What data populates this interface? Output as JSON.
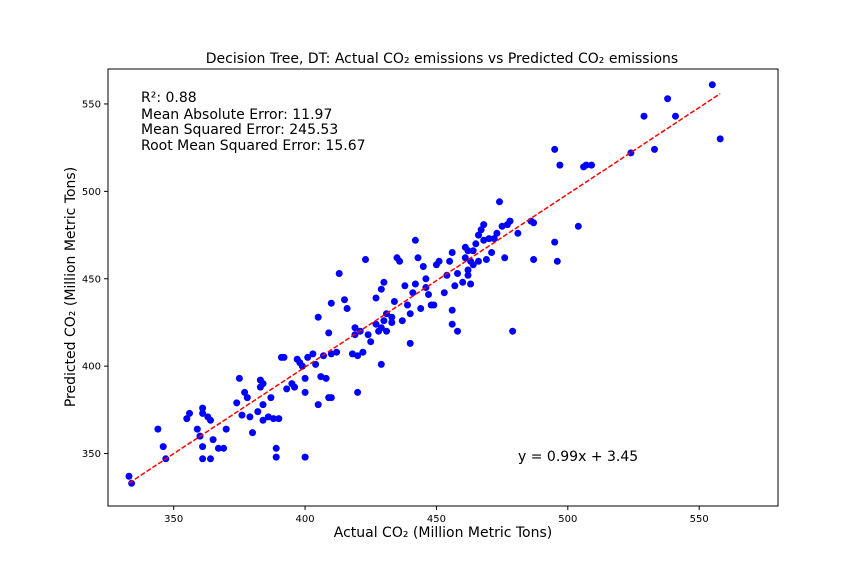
{
  "chart_data": {
    "type": "scatter",
    "title": "Decision Tree, DT: Actual CO₂ emissions vs Predicted CO₂ emissions",
    "xlabel": "Actual CO₂ (Million Metric Tons)",
    "ylabel": "Predicted CO₂ (Million Metric Tons)",
    "xlim": [
      325,
      580
    ],
    "ylim": [
      320,
      570
    ],
    "xticks": [
      350,
      400,
      450,
      500,
      550
    ],
    "yticks": [
      350,
      400,
      450,
      500,
      550
    ],
    "grid": false,
    "point_color": "#0000ff",
    "fit_line_color": "#ff0000",
    "metrics": [
      "R²: 0.88",
      "Mean Absolute Error: 11.97",
      "Mean Squared Error: 245.53",
      "Root Mean Squared Error: 15.67"
    ],
    "equation": "y = 0.99x + 3.45",
    "fit": {
      "slope": 0.99,
      "intercept": 3.45,
      "x_range": [
        333,
        558
      ]
    },
    "points": [
      [
        333,
        337
      ],
      [
        334,
        333
      ],
      [
        344,
        364
      ],
      [
        346,
        354
      ],
      [
        347,
        347
      ],
      [
        355,
        370
      ],
      [
        356,
        373
      ],
      [
        359,
        364
      ],
      [
        360,
        360
      ],
      [
        361,
        376
      ],
      [
        361,
        373
      ],
      [
        361,
        354
      ],
      [
        361,
        347
      ],
      [
        363,
        371
      ],
      [
        364,
        369
      ],
      [
        364,
        347
      ],
      [
        365,
        358
      ],
      [
        367,
        353
      ],
      [
        369,
        353
      ],
      [
        370,
        364
      ],
      [
        374,
        379
      ],
      [
        375,
        393
      ],
      [
        376,
        372
      ],
      [
        377,
        385
      ],
      [
        378,
        382
      ],
      [
        379,
        371
      ],
      [
        380,
        362
      ],
      [
        382,
        374
      ],
      [
        383,
        392
      ],
      [
        383,
        388
      ],
      [
        384,
        390
      ],
      [
        384,
        378
      ],
      [
        384,
        369
      ],
      [
        386,
        371
      ],
      [
        387,
        382
      ],
      [
        388,
        370
      ],
      [
        389,
        348
      ],
      [
        389,
        353
      ],
      [
        390,
        370
      ],
      [
        391,
        405
      ],
      [
        392,
        405
      ],
      [
        393,
        387
      ],
      [
        395,
        390
      ],
      [
        396,
        388
      ],
      [
        397,
        404
      ],
      [
        398,
        402
      ],
      [
        399,
        400
      ],
      [
        400,
        385
      ],
      [
        400,
        348
      ],
      [
        400,
        393
      ],
      [
        401,
        405
      ],
      [
        403,
        407
      ],
      [
        404,
        401
      ],
      [
        405,
        428
      ],
      [
        405,
        378
      ],
      [
        406,
        394
      ],
      [
        407,
        406
      ],
      [
        408,
        393
      ],
      [
        409,
        382
      ],
      [
        410,
        382
      ],
      [
        409,
        419
      ],
      [
        410,
        407
      ],
      [
        410,
        436
      ],
      [
        412,
        408
      ],
      [
        413,
        453
      ],
      [
        415,
        438
      ],
      [
        416,
        433
      ],
      [
        418,
        407
      ],
      [
        419,
        418
      ],
      [
        419,
        422
      ],
      [
        420,
        406
      ],
      [
        420,
        385
      ],
      [
        421,
        420
      ],
      [
        422,
        408
      ],
      [
        423,
        461
      ],
      [
        424,
        418
      ],
      [
        425,
        414
      ],
      [
        427,
        439
      ],
      [
        427,
        424
      ],
      [
        428,
        420
      ],
      [
        429,
        422
      ],
      [
        429,
        401
      ],
      [
        429,
        444
      ],
      [
        430,
        448
      ],
      [
        430,
        426
      ],
      [
        431,
        430
      ],
      [
        431,
        420
      ],
      [
        433,
        428
      ],
      [
        433,
        425
      ],
      [
        434,
        437
      ],
      [
        435,
        462
      ],
      [
        436,
        460
      ],
      [
        437,
        426
      ],
      [
        438,
        446
      ],
      [
        439,
        435
      ],
      [
        440,
        413
      ],
      [
        440,
        430
      ],
      [
        441,
        442
      ],
      [
        442,
        472
      ],
      [
        442,
        447
      ],
      [
        443,
        462
      ],
      [
        444,
        433
      ],
      [
        445,
        457
      ],
      [
        446,
        450
      ],
      [
        446,
        445
      ],
      [
        447,
        441
      ],
      [
        448,
        435
      ],
      [
        449,
        435
      ],
      [
        450,
        458
      ],
      [
        451,
        460
      ],
      [
        453,
        442
      ],
      [
        454,
        452
      ],
      [
        455,
        460
      ],
      [
        456,
        465
      ],
      [
        456,
        424
      ],
      [
        456,
        432
      ],
      [
        457,
        446
      ],
      [
        458,
        453
      ],
      [
        458,
        420
      ],
      [
        460,
        448
      ],
      [
        461,
        468
      ],
      [
        461,
        462
      ],
      [
        462,
        455
      ],
      [
        462,
        452
      ],
      [
        463,
        460
      ],
      [
        463,
        447
      ],
      [
        464,
        466
      ],
      [
        464,
        458
      ],
      [
        465,
        470
      ],
      [
        466,
        475
      ],
      [
        466,
        460
      ],
      [
        467,
        478
      ],
      [
        468,
        481
      ],
      [
        469,
        461
      ],
      [
        470,
        473
      ],
      [
        471,
        465
      ],
      [
        472,
        473
      ],
      [
        473,
        476
      ],
      [
        474,
        494
      ],
      [
        475,
        480
      ],
      [
        476,
        462
      ],
      [
        477,
        481
      ],
      [
        478,
        483
      ],
      [
        479,
        420
      ],
      [
        481,
        476
      ],
      [
        486,
        483
      ],
      [
        487,
        461
      ],
      [
        495,
        524
      ],
      [
        495,
        471
      ],
      [
        496,
        460
      ],
      [
        497,
        515
      ],
      [
        504,
        480
      ],
      [
        506,
        514
      ],
      [
        507,
        515
      ],
      [
        509,
        515
      ],
      [
        524,
        522
      ],
      [
        529,
        543
      ],
      [
        533,
        524
      ],
      [
        538,
        553
      ],
      [
        541,
        543
      ],
      [
        555,
        561
      ],
      [
        558,
        530
      ],
      [
        487,
        482
      ],
      [
        468,
        472
      ],
      [
        462,
        466
      ]
    ]
  }
}
